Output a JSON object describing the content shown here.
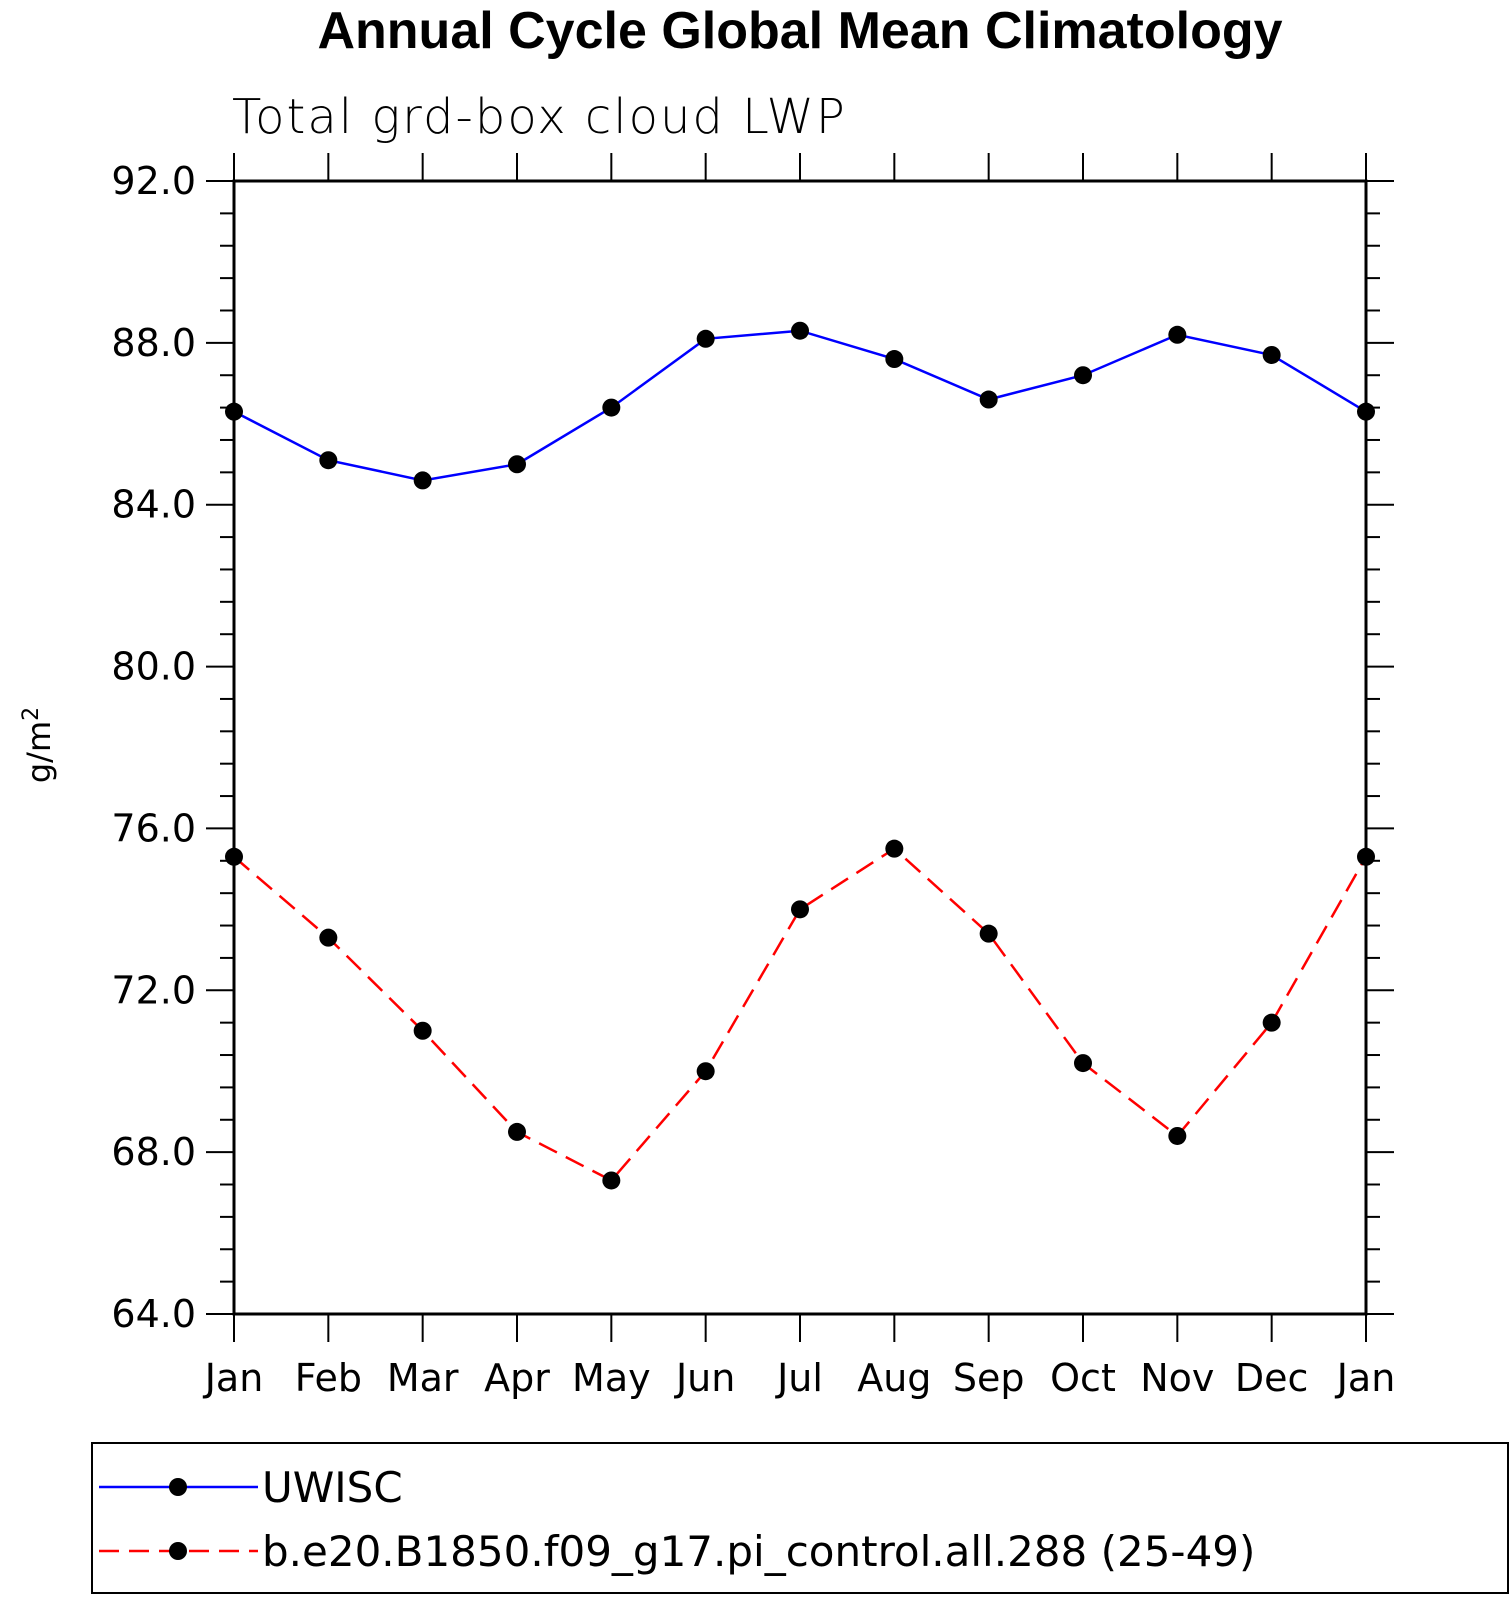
{
  "chart_data": {
    "type": "line",
    "title": "Annual Cycle Global Mean Climatology",
    "subtitle": "Total grd-box cloud LWP",
    "ylabel": "g/m",
    "ylabel_superscript": "2",
    "ylim": [
      64.0,
      92.0
    ],
    "yticks": [
      "64.0",
      "68.0",
      "72.0",
      "76.0",
      "80.0",
      "84.0",
      "88.0",
      "92.0"
    ],
    "categories": [
      "Jan",
      "Feb",
      "Mar",
      "Apr",
      "May",
      "Jun",
      "Jul",
      "Aug",
      "Sep",
      "Oct",
      "Nov",
      "Dec",
      "Jan"
    ],
    "series": [
      {
        "name": "UWISC",
        "color": "#0000ff",
        "dash": "solid",
        "values": [
          86.3,
          85.1,
          84.6,
          85.0,
          86.4,
          88.1,
          88.3,
          87.6,
          86.6,
          87.2,
          88.2,
          87.7,
          86.3
        ]
      },
      {
        "name": "b.e20.B1850.f09_g17.pi_control.all.288 (25-49)",
        "color": "#ff0000",
        "dash": "dashed",
        "values": [
          75.3,
          73.3,
          71.0,
          68.5,
          67.3,
          70.0,
          74.0,
          75.5,
          73.4,
          70.2,
          68.4,
          71.2,
          75.3
        ]
      }
    ],
    "legend_position": "bottom",
    "marker": "filled-circle"
  }
}
